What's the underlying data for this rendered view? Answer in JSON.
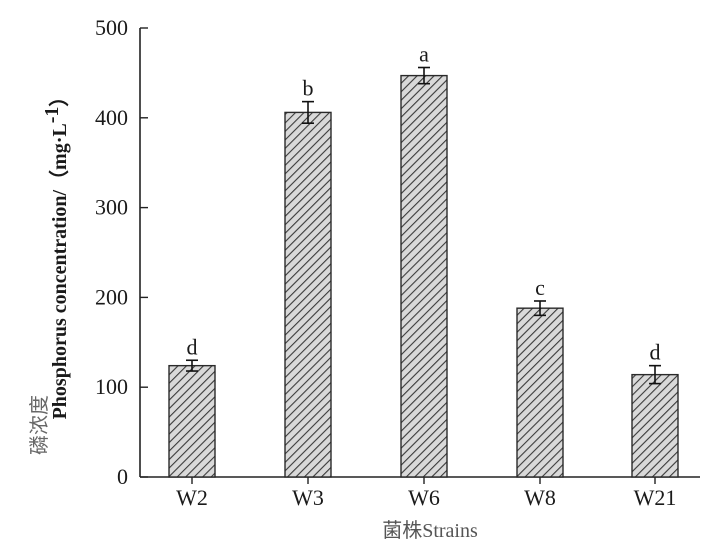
{
  "chart_data": {
    "type": "bar",
    "categories": [
      "W2",
      "W3",
      "W6",
      "W8",
      "W21"
    ],
    "values": [
      124,
      406,
      447,
      188,
      114
    ],
    "error": [
      6,
      12,
      9,
      8,
      10
    ],
    "significance": [
      "d",
      "b",
      "a",
      "c",
      "d"
    ],
    "title": "",
    "ylabel_cn": "磷浓度",
    "ylabel_en": "Phosphorus concentration/（mg·L",
    "ylabel_sup": "-1",
    "ylabel_close": "）",
    "xlabel_cn": "菌株",
    "xlabel_en": "Strains",
    "ylim": [
      0,
      500
    ],
    "yticks": [
      0,
      100,
      200,
      300,
      400,
      500
    ],
    "bar_fill": "hatched",
    "bar_color": "#555555",
    "grid": false,
    "legend": "none"
  }
}
